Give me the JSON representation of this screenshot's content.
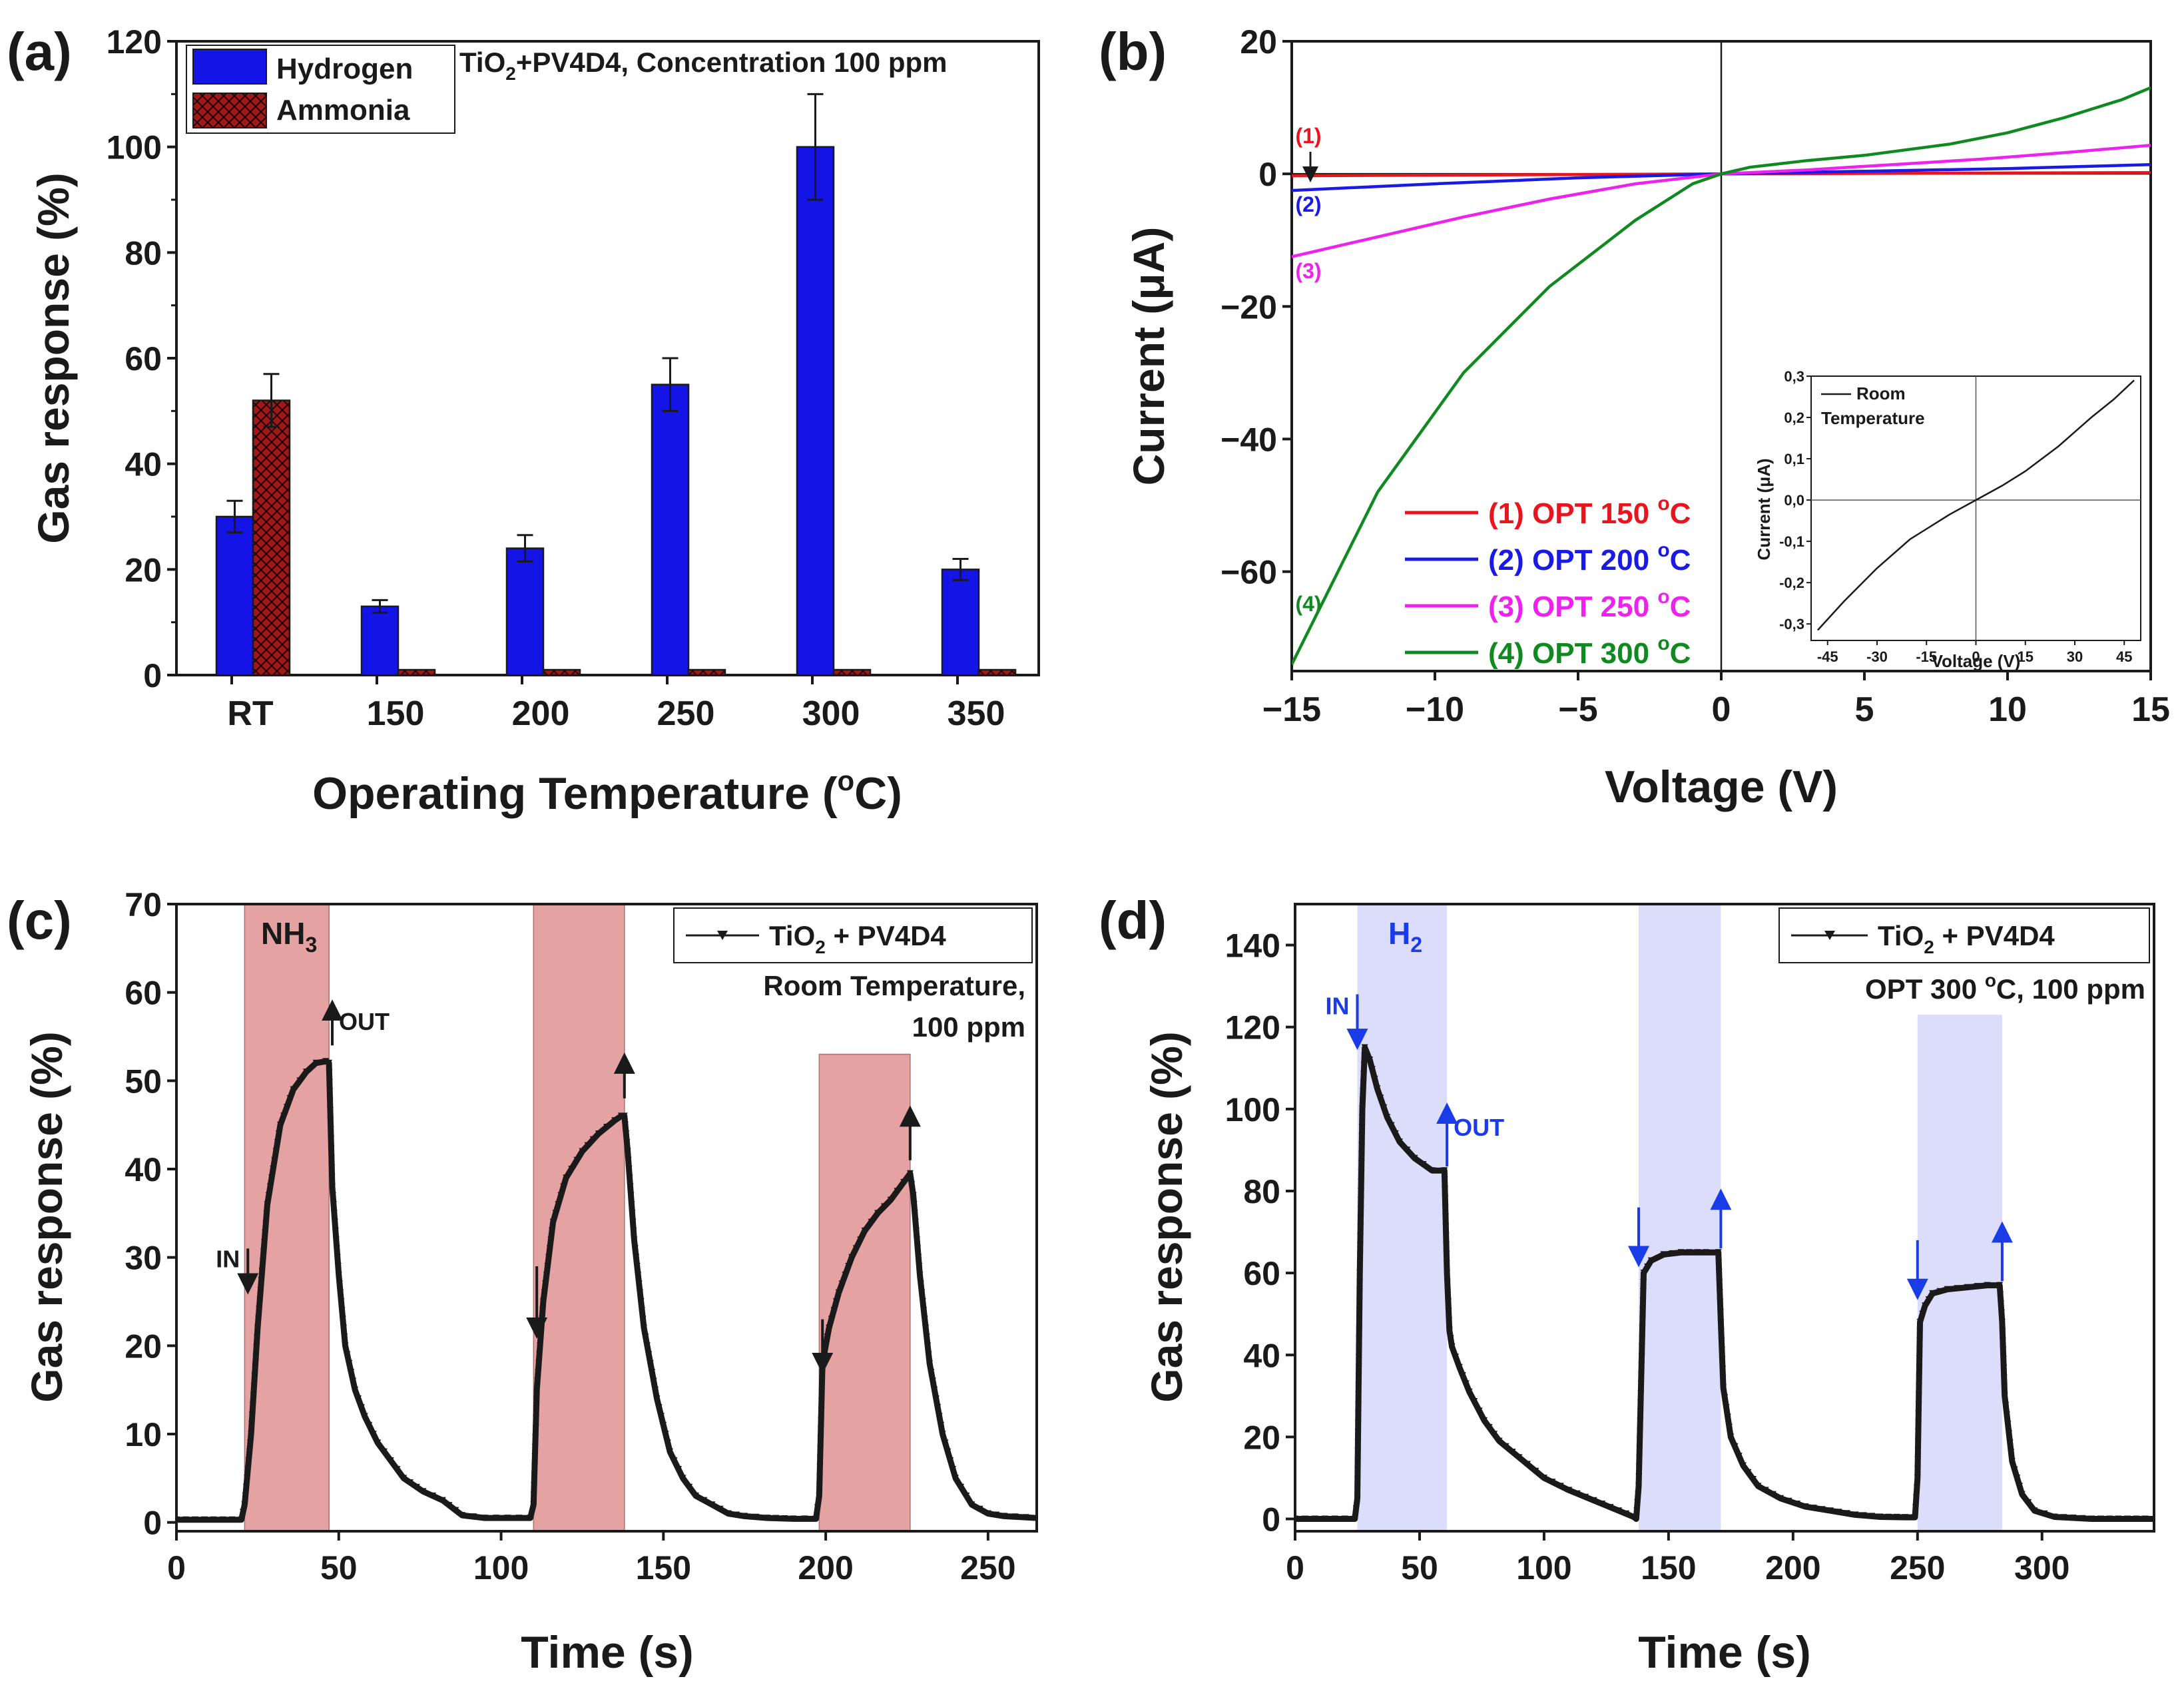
{
  "chart_data": [
    {
      "id": "a",
      "type": "bar",
      "panel_label": "(a)",
      "xlabel": "Operating Temperature (",
      "xlabel_sup": "o",
      "xlabel_end": "C)",
      "ylabel": "Gas response (%)",
      "ylim": [
        0,
        120
      ],
      "yticks": [
        0,
        20,
        40,
        60,
        80,
        100,
        120
      ],
      "categories": [
        "RT",
        "150",
        "200",
        "250",
        "300",
        "350"
      ],
      "series": [
        {
          "name": "Hydrogen",
          "color": "#1414e6",
          "pattern": "solid",
          "values": [
            30,
            13,
            24,
            55,
            100,
            20
          ],
          "errors": [
            3,
            1.2,
            2.5,
            5,
            10,
            2
          ]
        },
        {
          "name": "Ammonia",
          "color": "#a01818",
          "pattern": "crosshatch",
          "values": [
            52,
            1,
            1,
            1,
            1,
            1
          ],
          "errors": [
            5,
            0,
            0,
            0,
            0,
            0
          ]
        }
      ],
      "annotation": {
        "pre": "TiO",
        "sub": "2",
        "post": "+PV4D4, Concentration 100 ppm"
      }
    },
    {
      "id": "b",
      "type": "line",
      "panel_label": "(b)",
      "xlabel": "Voltage (V)",
      "ylabel_pre": "Current (",
      "ylabel_mu": "μ",
      "ylabel_post": "A)",
      "xlim": [
        -15,
        15
      ],
      "ylim": [
        -75,
        20
      ],
      "xticks": [
        -15,
        -10,
        -5,
        0,
        5,
        10,
        15
      ],
      "xtick_labels": [
        "−15",
        "−10",
        "−5",
        "0",
        "5",
        "10",
        "15"
      ],
      "yticks": [
        20,
        0,
        -20,
        -40,
        -60
      ],
      "ytick_labels": [
        "20",
        "0",
        "−20",
        "−40",
        "−60"
      ],
      "series": [
        {
          "name": "(1) OPT 150 ",
          "deg": "o",
          "unit": "C",
          "tag": "(1)",
          "color": "#e8141e",
          "x": [
            -15,
            0,
            15
          ],
          "y": [
            -0.3,
            0,
            0.2
          ]
        },
        {
          "name": "(2) OPT 200 ",
          "deg": "o",
          "unit": "C",
          "tag": "(2)",
          "color": "#1a1ae6",
          "x": [
            -15,
            -10,
            -5,
            0,
            5,
            10,
            15
          ],
          "y": [
            -2.5,
            -1.5,
            -0.6,
            0,
            0.4,
            0.8,
            1.4
          ]
        },
        {
          "name": "(3) OPT 250 ",
          "deg": "o",
          "unit": "C",
          "tag": "(3)",
          "color": "#ee22ee",
          "x": [
            -15,
            -12,
            -9,
            -6,
            -3,
            0,
            3,
            6,
            9,
            12,
            15
          ],
          "y": [
            -12.5,
            -9.5,
            -6.5,
            -3.8,
            -1.5,
            0,
            0.6,
            1.4,
            2.2,
            3.2,
            4.3
          ]
        },
        {
          "name": "(4) OPT 300 ",
          "deg": "o",
          "unit": "C",
          "tag": "(4)",
          "color": "#108a20",
          "x": [
            -15,
            -12,
            -9,
            -6,
            -3,
            -1,
            0,
            1,
            3,
            5,
            8,
            10,
            12,
            14,
            15
          ],
          "y": [
            -74,
            -48,
            -30,
            -17,
            -7,
            -1.5,
            0,
            1,
            2,
            2.8,
            4.5,
            6.2,
            8.5,
            11.2,
            13
          ]
        }
      ],
      "arrow_label": "(1)",
      "inset": {
        "xlabel": "Voltage (V)",
        "ylabel_pre": "Current (",
        "ylabel_mu": "μ",
        "ylabel_post": "A)",
        "xlim": [
          -50,
          50
        ],
        "ylim": [
          -0.34,
          0.3
        ],
        "xticks": [
          -45,
          -30,
          -15,
          0,
          15,
          30,
          45
        ],
        "yticks": [
          0.3,
          0.2,
          0.1,
          0.0,
          -0.1,
          -0.2,
          -0.3
        ],
        "ytick_labels": [
          "0,3",
          "0,2",
          "0,1",
          "0,0",
          "-0,1",
          "-0,2",
          "-0,3"
        ],
        "legend_line1": "Room",
        "legend_line2": "Temperature",
        "x": [
          -48,
          -40,
          -30,
          -20,
          -15,
          -8,
          0,
          8,
          15,
          25,
          35,
          42,
          48
        ],
        "y": [
          -0.315,
          -0.245,
          -0.165,
          -0.095,
          -0.07,
          -0.035,
          0,
          0.035,
          0.07,
          0.13,
          0.2,
          0.245,
          0.29
        ]
      }
    },
    {
      "id": "c",
      "type": "line",
      "panel_label": "(c)",
      "xlabel": "Time (s)",
      "ylabel": "Gas response (%)",
      "xlim": [
        0,
        265
      ],
      "ylim": [
        -1,
        70
      ],
      "xticks": [
        0,
        50,
        100,
        150,
        200,
        250
      ],
      "yticks": [
        0,
        10,
        20,
        30,
        40,
        50,
        60,
        70
      ],
      "shade_color": "#e4a2a2",
      "shaded": [
        [
          21,
          47,
          70
        ],
        [
          110,
          138,
          70
        ],
        [
          198,
          226,
          53
        ]
      ],
      "gas_pre": "NH",
      "gas_sub": "3",
      "legend_pre": "TiO",
      "legend_sub": "2",
      "legend_post": " + PV4D4",
      "condition_line1": "Room Temperature,",
      "condition_line2": "100 ppm",
      "in_label": "IN",
      "out_label": "OUT",
      "arrow_color": "#1a1a1a",
      "x": [
        0,
        20,
        21,
        23,
        25,
        28,
        32,
        36,
        40,
        43,
        46,
        47,
        48,
        50,
        52,
        55,
        58,
        62,
        66,
        70,
        76,
        82,
        88,
        95,
        102,
        109,
        110,
        111,
        113,
        116,
        120,
        125,
        130,
        135,
        137,
        138,
        139,
        141,
        144,
        148,
        152,
        156,
        160,
        165,
        170,
        175,
        182,
        190,
        197,
        198,
        199,
        201,
        204,
        208,
        212,
        216,
        220,
        224,
        226,
        227,
        229,
        232,
        236,
        240,
        245,
        250,
        255,
        265
      ],
      "y": [
        0.3,
        0.3,
        2,
        10,
        22,
        36,
        45,
        49,
        51,
        52,
        52.2,
        52,
        38,
        28,
        20,
        15,
        12,
        9,
        7,
        5,
        3.5,
        2.5,
        0.8,
        0.5,
        0.5,
        0.5,
        2,
        15,
        25,
        34,
        39,
        42,
        44,
        45.5,
        46,
        46,
        42,
        32,
        22,
        14,
        8,
        5,
        3,
        2,
        1,
        0.7,
        0.5,
        0.4,
        0.4,
        3,
        18,
        22,
        26,
        30,
        33,
        35,
        36.5,
        38.5,
        39.5,
        37,
        28,
        18,
        10,
        5,
        2,
        1,
        0.7,
        0.5
      ]
    },
    {
      "id": "d",
      "type": "line",
      "panel_label": "(d)",
      "xlabel": "Time (s)",
      "ylabel": "Gas response (%)",
      "xlim": [
        0,
        345
      ],
      "ylim": [
        -3,
        150
      ],
      "xticks": [
        0,
        50,
        100,
        150,
        200,
        250,
        300
      ],
      "yticks": [
        0,
        20,
        40,
        60,
        80,
        100,
        120,
        140
      ],
      "shade_color": "#dcdcfb",
      "shaded": [
        [
          25,
          61,
          150
        ],
        [
          138,
          171,
          150
        ],
        [
          250,
          284,
          123
        ]
      ],
      "gas_pre": "H",
      "gas_sub": "2",
      "legend_pre": "TiO",
      "legend_sub": "2",
      "legend_post": " + PV4D4",
      "condition_pre": "OPT 300 ",
      "condition_deg": "o",
      "condition_post": "C, 100 ppm",
      "in_label": "IN",
      "out_label": "OUT",
      "arrow_color": "#1a3ce8",
      "x": [
        0,
        24,
        25,
        26,
        27,
        28,
        30,
        33,
        37,
        42,
        48,
        55,
        60,
        61,
        62,
        63,
        66,
        70,
        76,
        82,
        90,
        100,
        110,
        120,
        130,
        136,
        137,
        138,
        140,
        143,
        148,
        155,
        165,
        170,
        171,
        172,
        175,
        180,
        186,
        195,
        205,
        215,
        225,
        235,
        245,
        249,
        250,
        251,
        253,
        256,
        262,
        270,
        278,
        283,
        284,
        285,
        288,
        292,
        297,
        305,
        320,
        345
      ],
      "y": [
        0,
        0,
        5,
        60,
        100,
        115,
        112,
        105,
        98,
        92,
        88,
        85,
        85,
        60,
        46,
        42,
        37,
        31,
        24,
        19,
        15,
        10,
        7,
        4.5,
        2,
        0.5,
        0,
        8,
        60,
        63,
        64.5,
        65,
        65,
        65,
        48,
        32,
        20,
        13,
        8,
        5,
        3,
        2,
        1,
        0.5,
        0.4,
        0.4,
        10,
        48,
        52,
        55,
        56,
        56.5,
        57,
        57,
        48,
        30,
        14,
        6,
        2,
        0.5,
        0,
        0
      ]
    }
  ]
}
